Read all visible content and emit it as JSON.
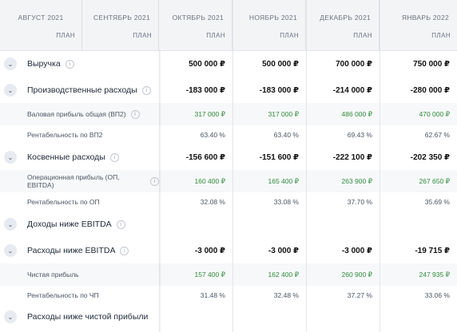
{
  "months": [
    {
      "name": "АВГУСТ 2021",
      "plan": "ПЛАН"
    },
    {
      "name": "СЕНТЯБРЬ 2021",
      "plan": "ПЛАН"
    },
    {
      "name": "ОКТЯБРЬ 2021",
      "plan": "ПЛАН"
    },
    {
      "name": "НОЯБРЬ 2021",
      "plan": "ПЛАН"
    },
    {
      "name": "ДЕКАБРЬ 2021",
      "plan": "ПЛАН"
    },
    {
      "name": "ЯНВАРЬ 2022",
      "plan": "ПЛАН"
    }
  ],
  "rows": [
    {
      "label": "Выручка",
      "values": [
        "500 000 ₽",
        "500 000 ₽",
        "700 000 ₽",
        "750 000 ₽"
      ]
    },
    {
      "label": "Производственные расходы",
      "values": [
        "-183 000 ₽",
        "-183 000 ₽",
        "-214 000 ₽",
        "-280 000 ₽"
      ]
    },
    {
      "label": "Валовая прибыль общая (ВП2)",
      "values": [
        "317 000 ₽",
        "317 000 ₽",
        "486 000 ₽",
        "470 000 ₽"
      ]
    },
    {
      "label": "Рентабельность по ВП2",
      "values": [
        "63.40 %",
        "63.40 %",
        "69.43 %",
        "62.67 %"
      ]
    },
    {
      "label": "Косвенные расходы",
      "values": [
        "-156 600 ₽",
        "-151 600 ₽",
        "-222 100 ₽",
        "-202 350 ₽"
      ]
    },
    {
      "label": "Операционная прибыль (ОП, EBITDA)",
      "values": [
        "160 400 ₽",
        "165 400 ₽",
        "263 900 ₽",
        "267 650 ₽"
      ]
    },
    {
      "label": "Рентабельность по ОП",
      "values": [
        "32.08 %",
        "33.08 %",
        "37.70 %",
        "35.69 %"
      ]
    },
    {
      "label": "Доходы ниже EBITDA",
      "values": []
    },
    {
      "label": "Расходы ниже EBITDA",
      "values": [
        "-3 000 ₽",
        "-3 000 ₽",
        "-3 000 ₽",
        "-19 715 ₽"
      ]
    },
    {
      "label": "Чистая прибыль",
      "values": [
        "157 400 ₽",
        "162 400 ₽",
        "260 900 ₽",
        "247 935 ₽"
      ]
    },
    {
      "label": "Рентабельность по ЧП",
      "values": [
        "31.48 %",
        "32.48 %",
        "37.27 %",
        "33.06 %"
      ]
    },
    {
      "label": "Расходы ниже чистой прибыли",
      "values": []
    }
  ],
  "info_glyph": "i",
  "chevron_glyph": "⌄",
  "colors": {
    "positive": "#2e8b3a",
    "header_bg": "#f3f4f6",
    "band_bg": "#f7f8f9"
  }
}
